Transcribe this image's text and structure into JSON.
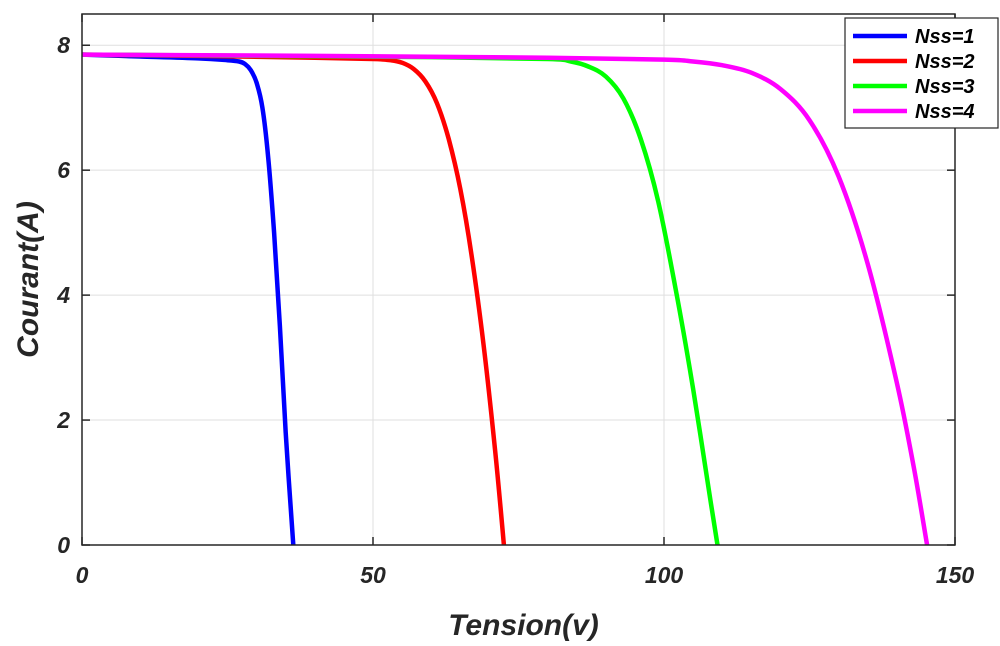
{
  "chart_data": {
    "type": "line",
    "xlabel": "Tension(v)",
    "ylabel": "Courant(A)",
    "xlim": [
      0,
      150
    ],
    "ylim": [
      0,
      8.5
    ],
    "x_ticks": [
      "0",
      "50",
      "100",
      "150"
    ],
    "y_ticks": [
      "0",
      "2",
      "4",
      "6",
      "8"
    ],
    "grid": true,
    "legend_position": "top-right",
    "series": [
      {
        "name": "Nss=1",
        "color": "#0000ff",
        "x": [
          0,
          10,
          20,
          25,
          27,
          28,
          29,
          30,
          31,
          32,
          33,
          34,
          35,
          36.3
        ],
        "y": [
          7.85,
          7.82,
          7.79,
          7.76,
          7.74,
          7.7,
          7.6,
          7.4,
          7.0,
          6.2,
          5.0,
          3.5,
          1.8,
          0
        ]
      },
      {
        "name": "Nss=2",
        "color": "#ff0000",
        "x": [
          0,
          20,
          40,
          50,
          53,
          55,
          57,
          59,
          61,
          63,
          65,
          67,
          69,
          71,
          72.5
        ],
        "y": [
          7.85,
          7.83,
          7.8,
          7.78,
          7.76,
          7.72,
          7.62,
          7.42,
          7.07,
          6.5,
          5.7,
          4.6,
          3.2,
          1.5,
          0
        ]
      },
      {
        "name": "Nss=3",
        "color": "#00ff00",
        "x": [
          0,
          30,
          60,
          80,
          84,
          87,
          90,
          93,
          96,
          99,
          102,
          105,
          108,
          109.2
        ],
        "y": [
          7.85,
          7.83,
          7.81,
          7.78,
          7.74,
          7.66,
          7.5,
          7.15,
          6.5,
          5.5,
          4.1,
          2.5,
          0.7,
          0
        ]
      },
      {
        "name": "Nss=4",
        "color": "#ff00ff",
        "x": [
          0,
          40,
          80,
          100,
          105,
          110,
          115,
          120,
          125,
          130,
          135,
          140,
          143,
          145.2
        ],
        "y": [
          7.85,
          7.83,
          7.8,
          7.77,
          7.74,
          7.68,
          7.56,
          7.3,
          6.8,
          5.9,
          4.5,
          2.6,
          1.2,
          0
        ]
      }
    ]
  }
}
